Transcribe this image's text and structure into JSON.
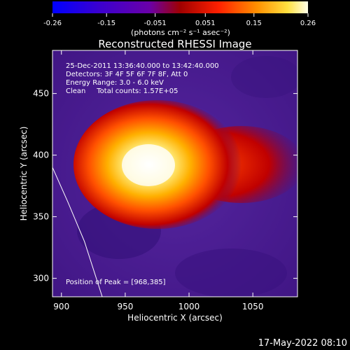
{
  "colorbar": {
    "tick_labels": [
      "-0.26",
      "-0.15",
      "-0.051",
      "0.051",
      "0.15",
      "0.26"
    ],
    "units_label": "(photons cm⁻² s⁻¹ asec⁻²)",
    "range": [
      -0.26,
      0.26
    ]
  },
  "chart_data": {
    "type": "heatmap",
    "title": "Reconstructed RHESSI Image",
    "xlabel": "Heliocentric X (arcsec)",
    "ylabel": "Heliocentric Y (arcsec)",
    "xlim": [
      893,
      1085
    ],
    "ylim": [
      285,
      485
    ],
    "x_ticks": [
      900,
      950,
      1000,
      1050
    ],
    "y_ticks": [
      300,
      350,
      400,
      450
    ],
    "x_tick_labels": [
      "900",
      "950",
      "1000",
      "1050"
    ],
    "y_tick_labels": [
      "300",
      "350",
      "400",
      "450"
    ],
    "peak": [
      968,
      385
    ],
    "annotations": [
      "25-Dec-2011 13:36:40.000 to 13:42:40.000",
      "Detectors: 3F 4F 5F 6F 7F 8F, Att 0",
      "Energy Range: 3.0 - 6.0 keV",
      "Clean     Total counts: 1.57E+05"
    ],
    "peak_label": "Position of Peak = [968,385]",
    "limb": [
      [
        893,
        390
      ],
      [
        905,
        362
      ],
      [
        918,
        330
      ],
      [
        932,
        285
      ]
    ]
  },
  "footer_date": "17-May-2022 08:10"
}
